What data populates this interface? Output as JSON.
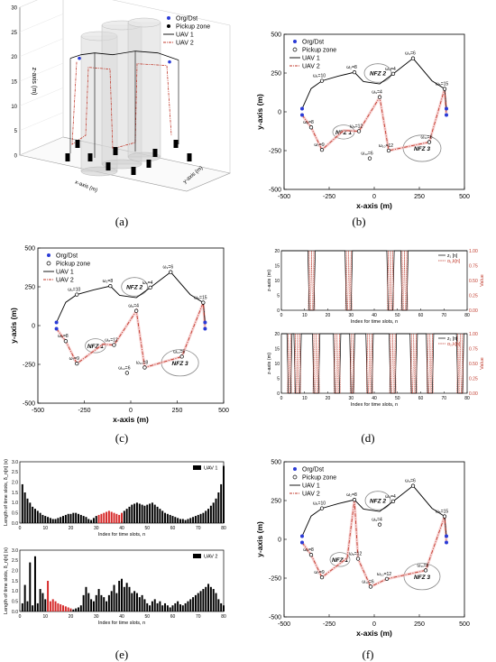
{
  "captions": [
    "(a)",
    "(b)",
    "(c)",
    "(d)",
    "(e)",
    "(f)"
  ],
  "chart_data": [
    {
      "id": "a",
      "type": "scatter",
      "title": "",
      "xlabel": "x-axis (m)",
      "ylabel": "y-axis (m)",
      "zlabel": "z-axis (m)",
      "zticks": [
        "0",
        "5",
        "10",
        "15",
        "20",
        "25",
        "30"
      ],
      "zlim": [
        0,
        30
      ],
      "legend": [
        "Org/Dst",
        "Pickup zone",
        "UAV 1",
        "UAV 2"
      ],
      "legend_position": "top-right",
      "colors": {
        "org": "#2a3ad6",
        "pickup": "#000000",
        "uav1": "#000000",
        "uav2": "#c0392b",
        "nfz": "#9a9a9a"
      }
    },
    {
      "id": "b",
      "type": "line",
      "xlabel": "x-axis (m)",
      "ylabel": "y-axis (m)",
      "xlim": [
        -500,
        500
      ],
      "ylim": [
        -500,
        500
      ],
      "xticks": [
        -500,
        -250,
        0,
        250,
        500
      ],
      "yticks": [
        -500,
        -250,
        0,
        250,
        500
      ],
      "legend": [
        "Org/Dst",
        "Pickup zone",
        "UAV 1",
        "UAV 2"
      ],
      "legend_position": "top-left",
      "nfz": [
        {
          "label": "NFZ 1",
          "cx": -170,
          "cy": -130,
          "rx": 60,
          "ry": 45
        },
        {
          "label": "NFZ 2",
          "cx": 20,
          "cy": 250,
          "rx": 75,
          "ry": 60
        },
        {
          "label": "NFZ 3",
          "cx": 265,
          "cy": -235,
          "rx": 105,
          "ry": 85
        }
      ],
      "pickups": [
        {
          "label": "ω₁=10",
          "x": -290,
          "y": 200
        },
        {
          "label": "ω₂=8",
          "x": -110,
          "y": 255
        },
        {
          "label": "ω₃=6",
          "x": 215,
          "y": 345
        },
        {
          "label": "ω₄=4",
          "x": 105,
          "y": 245
        },
        {
          "label": "ω₅=15",
          "x": 390,
          "y": 148
        },
        {
          "label": "ω₆=8",
          "x": -350,
          "y": -100
        },
        {
          "label": "ω₇=9",
          "x": -290,
          "y": -245
        },
        {
          "label": "ω₈=12",
          "x": -85,
          "y": -125
        },
        {
          "label": "ω₉=4",
          "x": 30,
          "y": 95
        },
        {
          "label": "ω₁₀=12",
          "x": 80,
          "y": -250
        },
        {
          "label": "ω₁₁=6",
          "x": 305,
          "y": -195
        },
        {
          "label": "ω₁₂=6",
          "x": -25,
          "y": -300
        }
      ],
      "org_dst": [
        [
          -400,
          20
        ],
        [
          -400,
          -20
        ],
        [
          400,
          20
        ],
        [
          400,
          -20
        ]
      ],
      "uav1": {
        "x": [
          -400,
          -350,
          -290,
          -200,
          -110,
          -60,
          30,
          105,
          215,
          320,
          390,
          400
        ],
        "y": [
          20,
          150,
          200,
          230,
          255,
          195,
          180,
          245,
          345,
          200,
          148,
          20
        ]
      },
      "uav2": {
        "x": [
          -400,
          -350,
          -290,
          -170,
          -85,
          30,
          80,
          305,
          390,
          400
        ],
        "y": [
          -20,
          -100,
          -245,
          -120,
          -125,
          95,
          -250,
          -195,
          148,
          -20
        ]
      }
    },
    {
      "id": "c",
      "type": "line",
      "xlabel": "x-axis (m)",
      "ylabel": "y-axis (m)",
      "xlim": [
        -500,
        500
      ],
      "ylim": [
        -500,
        500
      ],
      "xticks": [
        -500,
        -250,
        0,
        250,
        500
      ],
      "yticks": [
        -500,
        -250,
        0,
        250,
        500
      ],
      "legend": [
        "Org/Dst",
        "Pickup zone",
        "UAV 1",
        "UAV 2"
      ],
      "legend_position": "top-left",
      "nfz": [
        {
          "label": "NFZ 1",
          "cx": -190,
          "cy": -130,
          "rx": 55,
          "ry": 45
        },
        {
          "label": "NFZ 2",
          "cx": 20,
          "cy": 250,
          "rx": 70,
          "ry": 60
        },
        {
          "label": "NFZ 3",
          "cx": 265,
          "cy": -240,
          "rx": 100,
          "ry": 85
        }
      ],
      "pickups": [
        {
          "label": "ω₁=10",
          "x": -290,
          "y": 200
        },
        {
          "label": "ω₂=8",
          "x": -110,
          "y": 255
        },
        {
          "label": "ω₃=6",
          "x": 215,
          "y": 345
        },
        {
          "label": "ω₄=4",
          "x": 105,
          "y": 245
        },
        {
          "label": "ω₅=15",
          "x": 390,
          "y": 148
        },
        {
          "label": "ω₆=8",
          "x": -350,
          "y": -100
        },
        {
          "label": "ω₇=9",
          "x": -290,
          "y": -245
        },
        {
          "label": "ω₈=12",
          "x": -90,
          "y": -125
        },
        {
          "label": "ω₉=4",
          "x": 30,
          "y": 95
        },
        {
          "label": "ω₁₀=8",
          "x": 75,
          "y": -270
        },
        {
          "label": "ω₁₁=6",
          "x": 275,
          "y": -200
        },
        {
          "label": "ω₁₂=6",
          "x": -20,
          "y": -305
        }
      ],
      "org_dst": [
        [
          -400,
          20
        ],
        [
          -400,
          -20
        ],
        [
          400,
          20
        ],
        [
          400,
          -20
        ]
      ],
      "uav1": {
        "x": [
          -400,
          -350,
          -290,
          -200,
          -110,
          -60,
          30,
          105,
          215,
          320,
          390,
          400
        ],
        "y": [
          20,
          150,
          200,
          230,
          255,
          195,
          180,
          245,
          345,
          200,
          148,
          20
        ]
      },
      "uav2": {
        "x": [
          -400,
          -350,
          -290,
          -150,
          -90,
          30,
          75,
          275,
          390,
          400
        ],
        "y": [
          -20,
          -100,
          -245,
          -120,
          -125,
          95,
          -270,
          -200,
          148,
          -20
        ]
      }
    },
    {
      "id": "d",
      "type": "line",
      "xlabel": "Index for time slots, n",
      "ylabel": "z-axis (m)",
      "y2label": "Value",
      "xlim": [
        0,
        80
      ],
      "ylim": [
        0,
        20
      ],
      "y2lim": [
        0,
        1
      ],
      "xticks": [
        0,
        10,
        20,
        30,
        40,
        50,
        60,
        70,
        80
      ],
      "yticks": [
        0,
        5,
        10,
        15,
        20
      ],
      "y2ticks": [
        "0.00",
        "0.25",
        "0.50",
        "0.75",
        "1.00"
      ],
      "panels": [
        {
          "legend": [
            "z₁ [n]",
            "α₁,k[n]"
          ],
          "legend_position": "top-right",
          "z_drops": [
            [
              12,
              14
            ],
            [
              28,
              30
            ],
            [
              46,
              48
            ],
            [
              52,
              54
            ]
          ],
          "alpha_spikes": [
            12,
            13,
            14,
            28,
            29,
            30,
            46,
            47,
            48,
            52,
            53,
            54
          ]
        },
        {
          "legend": [
            "z₂ [n]",
            "α₂,k[n]"
          ],
          "legend_position": "top-right",
          "z_drops": [
            [
              3,
              4
            ],
            [
              6,
              8
            ],
            [
              14,
              16
            ],
            [
              23,
              25
            ],
            [
              30,
              31
            ],
            [
              37,
              39
            ],
            [
              47,
              49
            ],
            [
              56,
              58
            ],
            [
              63,
              65
            ],
            [
              76,
              78
            ]
          ],
          "alpha_spikes": [
            3,
            4,
            6,
            7,
            8,
            14,
            15,
            16,
            23,
            24,
            25,
            30,
            31,
            37,
            38,
            39,
            47,
            48,
            49,
            56,
            57,
            58,
            63,
            64,
            65,
            76,
            77,
            78
          ]
        }
      ]
    },
    {
      "id": "e",
      "type": "bar",
      "xlabel": "Index for time slots, n",
      "ylabel": "Length of time slots, δ_n[n] (s)",
      "xlim": [
        0,
        80
      ],
      "xticks": [
        0,
        10,
        20,
        30,
        40,
        50,
        60,
        70,
        80
      ],
      "panels": [
        {
          "legend": "UAV 1",
          "legend_position": "top-right",
          "ylim": [
            0,
            3
          ],
          "yticks": [
            "0.0",
            "0.5",
            "1.0",
            "1.5",
            "2.0",
            "2.5",
            "3.0"
          ],
          "highlight_range": [
            31,
            40
          ],
          "values": [
            1.9,
            1.5,
            1.2,
            1.0,
            0.8,
            0.7,
            0.6,
            0.5,
            0.4,
            0.35,
            0.3,
            0.25,
            0.2,
            0.2,
            0.25,
            0.3,
            0.35,
            0.4,
            0.45,
            0.45,
            0.5,
            0.5,
            0.45,
            0.4,
            0.35,
            0.3,
            0.2,
            0.15,
            0.25,
            0.35,
            0.4,
            0.45,
            0.5,
            0.55,
            0.6,
            0.55,
            0.5,
            0.45,
            0.4,
            0.5,
            0.6,
            0.7,
            0.8,
            0.9,
            0.95,
            1.0,
            0.95,
            0.9,
            0.85,
            0.9,
            0.95,
            1.0,
            0.9,
            0.8,
            0.7,
            0.6,
            0.5,
            0.45,
            0.4,
            0.35,
            0.3,
            0.25,
            0.2,
            0.2,
            0.15,
            0.2,
            0.25,
            0.3,
            0.35,
            0.4,
            0.45,
            0.5,
            0.6,
            0.7,
            0.85,
            1.0,
            1.2,
            1.5,
            1.9,
            2.8
          ]
        },
        {
          "legend": "UAV 2",
          "legend_position": "top-right",
          "ylim": [
            0,
            3
          ],
          "yticks": [
            "0.0",
            "0.5",
            "1.0",
            "1.5",
            "2.0",
            "2.5",
            "3.0"
          ],
          "highlight_range": [
            11,
            20
          ],
          "values": [
            0.4,
            1.3,
            0.5,
            2.4,
            0.3,
            2.7,
            0.4,
            1.1,
            0.9,
            0.6,
            1.5,
            0.5,
            0.6,
            0.5,
            0.4,
            0.35,
            0.3,
            0.25,
            0.2,
            0.15,
            0.1,
            0.15,
            0.2,
            0.3,
            0.8,
            1.2,
            0.9,
            0.6,
            0.5,
            0.8,
            1.1,
            0.8,
            0.7,
            0.5,
            0.8,
            1.0,
            1.3,
            0.9,
            1.5,
            1.6,
            1.2,
            1.4,
            1.2,
            0.9,
            1.0,
            0.9,
            0.7,
            0.8,
            0.6,
            0.4,
            0.3,
            0.5,
            0.6,
            0.4,
            0.5,
            0.3,
            0.4,
            0.3,
            0.2,
            0.3,
            0.4,
            0.5,
            0.35,
            0.3,
            0.4,
            0.5,
            0.6,
            0.7,
            0.8,
            0.9,
            1.0,
            1.1,
            1.2,
            1.35,
            1.2,
            1.1,
            0.9,
            0.6,
            0.4,
            0.3
          ]
        }
      ]
    },
    {
      "id": "f",
      "type": "line",
      "xlabel": "x-axis (m)",
      "ylabel": "y-axis (m)",
      "xlim": [
        -500,
        500
      ],
      "ylim": [
        -500,
        500
      ],
      "xticks": [
        -500,
        -250,
        0,
        250,
        500
      ],
      "yticks": [
        -500,
        -250,
        0,
        250,
        500
      ],
      "legend": [
        "Org/Dst",
        "Pickup zone",
        "UAV 1",
        "UAV 2"
      ],
      "legend_position": "top-left",
      "nfz": [
        {
          "label": "NFZ 1",
          "cx": -190,
          "cy": -130,
          "rx": 55,
          "ry": 45
        },
        {
          "label": "NFZ 2",
          "cx": 20,
          "cy": 250,
          "rx": 70,
          "ry": 60
        },
        {
          "label": "NFZ 3",
          "cx": 265,
          "cy": -240,
          "rx": 100,
          "ry": 85
        }
      ],
      "pickups": [
        {
          "label": "ω₁=10",
          "x": -290,
          "y": 200
        },
        {
          "label": "ω₂=8",
          "x": -110,
          "y": 255
        },
        {
          "label": "ω₃=6",
          "x": 215,
          "y": 345
        },
        {
          "label": "ω₄=4",
          "x": 105,
          "y": 245
        },
        {
          "label": "ω₅=15",
          "x": 390,
          "y": 148
        },
        {
          "label": "ω₆=8",
          "x": -350,
          "y": -100
        },
        {
          "label": "ω₇=9",
          "x": -290,
          "y": -245
        },
        {
          "label": "ω₈=12",
          "x": -90,
          "y": -125
        },
        {
          "label": "ω₉=4",
          "x": 30,
          "y": 95
        },
        {
          "label": "ω₁₀=12",
          "x": 70,
          "y": -255
        },
        {
          "label": "ω₁₁=6",
          "x": 285,
          "y": -200
        },
        {
          "label": "ω₁₂=6",
          "x": -20,
          "y": -305
        }
      ],
      "org_dst": [
        [
          -400,
          20
        ],
        [
          -400,
          -20
        ],
        [
          400,
          20
        ],
        [
          400,
          -20
        ]
      ],
      "uav1": {
        "x": [
          -400,
          -350,
          -290,
          -200,
          -110,
          -60,
          30,
          105,
          215,
          320,
          390,
          400
        ],
        "y": [
          20,
          150,
          200,
          230,
          255,
          195,
          180,
          245,
          345,
          200,
          148,
          20
        ]
      },
      "uav2": {
        "x": [
          -400,
          -350,
          -290,
          -150,
          -110,
          -90,
          -20,
          70,
          285,
          390,
          400
        ],
        "y": [
          -20,
          -100,
          -245,
          -120,
          255,
          -125,
          -305,
          -255,
          -200,
          148,
          -20
        ]
      }
    }
  ]
}
